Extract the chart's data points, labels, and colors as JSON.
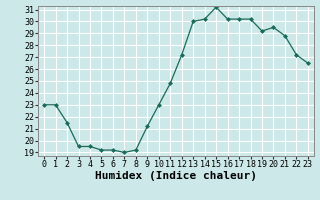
{
  "x": [
    0,
    1,
    2,
    3,
    4,
    5,
    6,
    7,
    8,
    9,
    10,
    11,
    12,
    13,
    14,
    15,
    16,
    17,
    18,
    19,
    20,
    21,
    22,
    23
  ],
  "y": [
    23,
    23,
    21.5,
    19.5,
    19.5,
    19.2,
    19.2,
    19.0,
    19.2,
    21.2,
    23.0,
    24.8,
    27.2,
    30.0,
    30.2,
    31.2,
    30.2,
    30.2,
    30.2,
    29.2,
    29.5,
    28.8,
    27.2,
    26.5
  ],
  "xlabel": "Humidex (Indice chaleur)",
  "ylim": [
    19,
    31
  ],
  "xlim": [
    -0.5,
    23.5
  ],
  "yticks": [
    19,
    20,
    21,
    22,
    23,
    24,
    25,
    26,
    27,
    28,
    29,
    30,
    31
  ],
  "xticks": [
    0,
    1,
    2,
    3,
    4,
    5,
    6,
    7,
    8,
    9,
    10,
    11,
    12,
    13,
    14,
    15,
    16,
    17,
    18,
    19,
    20,
    21,
    22,
    23
  ],
  "line_color": "#1a6b5a",
  "marker": "D",
  "marker_size": 2,
  "bg_color": "#cce8e8",
  "grid_color": "#ffffff",
  "tick_fontsize": 6,
  "xlabel_fontsize": 8,
  "xlabel_fontweight": "bold",
  "spine_color": "#888888",
  "tick_color": "#333333"
}
